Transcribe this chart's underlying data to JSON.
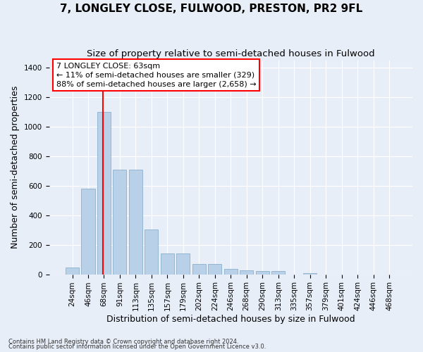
{
  "title": "7, LONGLEY CLOSE, FULWOOD, PRESTON, PR2 9FL",
  "subtitle": "Size of property relative to semi-detached houses in Fulwood",
  "xlabel": "Distribution of semi-detached houses by size in Fulwood",
  "ylabel": "Number of semi-detached properties",
  "footnote1": "Contains HM Land Registry data © Crown copyright and database right 2024.",
  "footnote2": "Contains public sector information licensed under the Open Government Licence v3.0.",
  "categories": [
    "24sqm",
    "46sqm",
    "68sqm",
    "91sqm",
    "113sqm",
    "135sqm",
    "157sqm",
    "179sqm",
    "202sqm",
    "224sqm",
    "246sqm",
    "268sqm",
    "290sqm",
    "313sqm",
    "335sqm",
    "357sqm",
    "379sqm",
    "401sqm",
    "424sqm",
    "446sqm",
    "468sqm"
  ],
  "values": [
    45,
    580,
    1100,
    710,
    710,
    305,
    140,
    140,
    70,
    70,
    35,
    25,
    20,
    20,
    0,
    10,
    0,
    0,
    0,
    0,
    0
  ],
  "bar_color": "#b8d0e8",
  "bar_edge_color": "#8ab0cc",
  "ylim": [
    0,
    1450
  ],
  "yticks": [
    0,
    200,
    400,
    600,
    800,
    1000,
    1200,
    1400
  ],
  "red_line_x": 1.93,
  "annotation_title": "7 LONGLEY CLOSE: 63sqm",
  "annotation_line1": "← 11% of semi-detached houses are smaller (329)",
  "annotation_line2": "88% of semi-detached houses are larger (2,658) →",
  "background_color": "#e8eef8",
  "grid_color": "#ffffff",
  "title_fontsize": 11,
  "subtitle_fontsize": 9.5,
  "axis_label_fontsize": 9,
  "tick_fontsize": 7.5,
  "annotation_fontsize": 8
}
